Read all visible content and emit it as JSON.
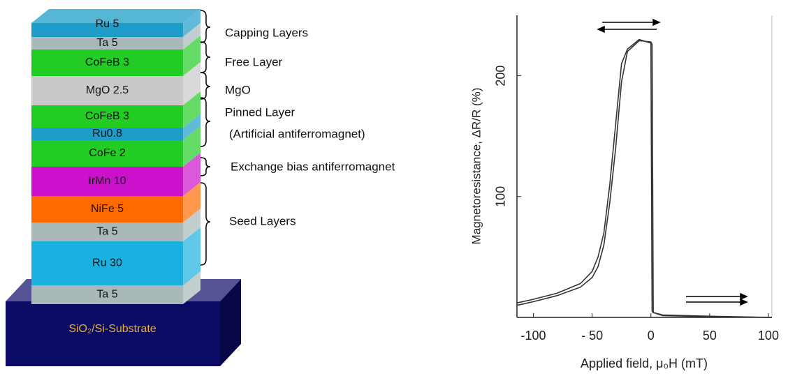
{
  "stack": {
    "layers": [
      {
        "label": "Ru 5",
        "color": "#1e9dc8"
      },
      {
        "label": "Ta  5",
        "color": "#a9b9b9"
      },
      {
        "label": "CoFeB 3",
        "color": "#22cc22"
      },
      {
        "label": "MgO 2.5",
        "color": "#c9c9c9"
      },
      {
        "label": "CoFeB 3",
        "color": "#22cc22"
      },
      {
        "label": "Ru0.8",
        "color": "#1e9dc8"
      },
      {
        "label": "CoFe 2",
        "color": "#22cc22"
      },
      {
        "label": "IrMn 10",
        "color": "#cc11cc"
      },
      {
        "label": "NiFe 5",
        "color": "#ff6a00"
      },
      {
        "label": "Ta 5",
        "color": "#a9b9b9"
      },
      {
        "label": "Ru 30",
        "color": "#1ab0e0"
      },
      {
        "label": "Ta 5",
        "color": "#a9b9b9"
      }
    ],
    "substrate": {
      "label": "SiO₂/Si-Substrate",
      "color": "#0b0b66"
    },
    "groups": [
      "Capping Layers",
      "Free Layer",
      "MgO",
      "Pinned Layer",
      "(Artificial antiferromagnet)",
      "Exchange bias antiferromagnet",
      "Seed Layers"
    ]
  },
  "chart_data": {
    "type": "line",
    "x_label": "Applied field,  μ₀H (mT)",
    "y_label": "Magnetoresistance, ΔR/R (%)",
    "x": [
      -114,
      -100,
      -80,
      -60,
      -50,
      -45,
      -40,
      -35,
      -30,
      -25,
      -20,
      -10,
      0,
      1,
      2,
      10,
      50,
      103
    ],
    "series": [
      {
        "color": "#333333",
        "values": [
          12,
          15,
          20,
          28,
          38,
          50,
          70,
          110,
          160,
          210,
          222,
          230,
          227,
          5,
          4,
          2,
          1,
          0
        ]
      },
      {
        "color": "#333333",
        "values": [
          10,
          13,
          18,
          25,
          33,
          42,
          60,
          95,
          140,
          195,
          220,
          229,
          228,
          226,
          4,
          1.5,
          0.5,
          0
        ]
      }
    ],
    "xlim": [
      -114,
      103
    ],
    "ylim": [
      0,
      250
    ],
    "xticks": [
      -100,
      {
        "value": -50,
        "label": "- 50"
      },
      0,
      50,
      100
    ],
    "yticks": [
      100,
      200
    ]
  }
}
